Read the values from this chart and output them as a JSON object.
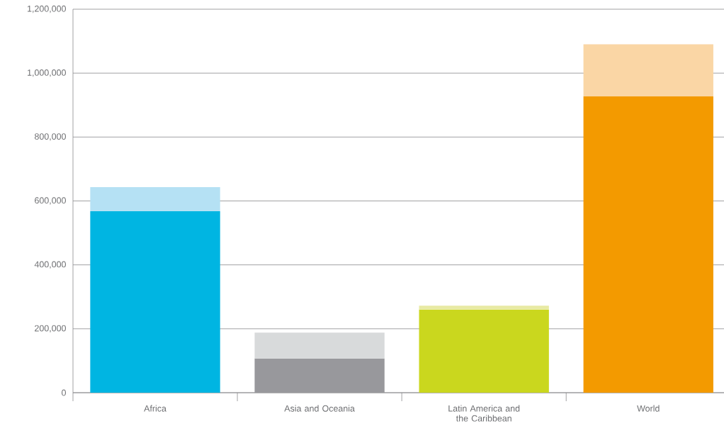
{
  "chart_data": {
    "type": "bar",
    "stacked": true,
    "grid": "y",
    "categories": [
      "Africa",
      "Asia and Oceania",
      "Latin America and the Caribbean",
      "World"
    ],
    "series": [
      {
        "colors": [
          "#00b5e2",
          "#98989c",
          "#cad71e",
          "#f39a00"
        ],
        "values": [
          568000,
          107000,
          260000,
          927000
        ]
      },
      {
        "colors": [
          "#b5e1f4",
          "#d8dadb",
          "#e8eaa4",
          "#fad6a5"
        ],
        "values": [
          75000,
          81000,
          12000,
          163000
        ]
      }
    ],
    "ylim": [
      0,
      1200000
    ],
    "yticks": [
      {
        "value": 0,
        "label": "0"
      },
      {
        "value": 200000,
        "label": "200,000"
      },
      {
        "value": 400000,
        "label": "400,000"
      },
      {
        "value": 600000,
        "label": "600,000"
      },
      {
        "value": 800000,
        "label": "800,000"
      },
      {
        "value": 1000000,
        "label": "1,000,000"
      },
      {
        "value": 1200000,
        "label": "1,200,000"
      }
    ]
  }
}
